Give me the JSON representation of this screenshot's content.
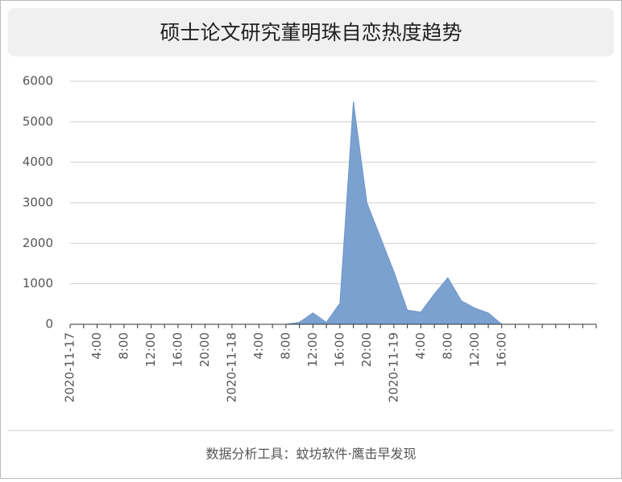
{
  "chart_data": {
    "type": "area",
    "title": "硕士论文研究董明珠自恋热度趋势",
    "footer": "数据分析工具：蚊坊软件·鹰击早发现",
    "categories": [
      "2020-11-17",
      null,
      "4:00",
      null,
      "8:00",
      null,
      "12:00",
      null,
      "16:00",
      null,
      "20:00",
      null,
      "2020-11-18",
      null,
      "4:00",
      null,
      "8:00",
      null,
      "12:00",
      null,
      "16:00",
      null,
      "20:00",
      null,
      "2020-11-19",
      null,
      "4:00",
      null,
      "8:00",
      null,
      "12:00",
      null,
      "16:00",
      null,
      null,
      null,
      null,
      null,
      null,
      null
    ],
    "values": [
      0,
      0,
      0,
      0,
      0,
      0,
      0,
      0,
      0,
      0,
      0,
      0,
      0,
      0,
      0,
      0,
      0,
      50,
      280,
      50,
      520,
      5500,
      3000,
      2150,
      1300,
      350,
      300,
      750,
      1150,
      580,
      400,
      280,
      0,
      null,
      null,
      null,
      null,
      null,
      null,
      null
    ],
    "color": "#7ba1d0",
    "line_color": "#6f96c8",
    "ylim": [
      0,
      6000
    ],
    "yticks": [
      0,
      1000,
      2000,
      3000,
      4000,
      5000,
      6000
    ],
    "grid": true
  }
}
